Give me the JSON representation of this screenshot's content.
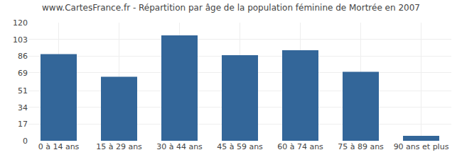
{
  "chart_data": {
    "type": "bar",
    "title": "www.CartesFrance.fr - Répartition par âge de la population féminine de Mortrée en 2007",
    "categories": [
      "0 à 14 ans",
      "15 à 29 ans",
      "30 à 44 ans",
      "45 à 59 ans",
      "60 à 74 ans",
      "75 à 89 ans",
      "90 ans et plus"
    ],
    "values": [
      88,
      65,
      107,
      87,
      92,
      70,
      5
    ],
    "color": "#336699",
    "ylim": [
      0,
      120
    ],
    "yticks": [
      0,
      17,
      34,
      51,
      69,
      86,
      103,
      120
    ],
    "grid": true
  }
}
